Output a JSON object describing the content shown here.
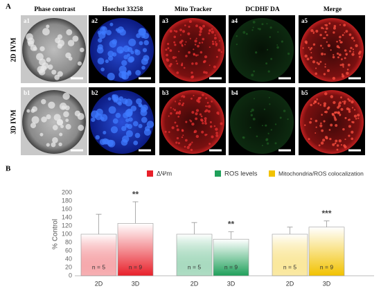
{
  "panel_a": {
    "label": "A",
    "columns": [
      "Phase contrast",
      "Hoechst 33258",
      "Mito Tracker",
      "DCDHF DA",
      "Merge"
    ],
    "rows": [
      {
        "label": "2D IVM",
        "images": [
          "a1",
          "a2",
          "a3",
          "a4",
          "a5"
        ]
      },
      {
        "label": "3D IVM",
        "images": [
          "b1",
          "b2",
          "b3",
          "b4",
          "b5"
        ]
      }
    ]
  },
  "chart_data": {
    "type": "bar",
    "panel_label": "B",
    "ylabel": "% Control",
    "categories": [
      "2D",
      "3D"
    ],
    "n_labels": [
      "n = 5",
      "n = 9"
    ],
    "ylim": [
      0,
      200
    ],
    "yticks": [
      0,
      20,
      40,
      60,
      80,
      100,
      120,
      140,
      160,
      180,
      200
    ],
    "grid": false,
    "series": [
      {
        "name": "ΔΨm",
        "color": "#e8202a",
        "values": [
          100,
          126
        ],
        "errors": [
          48,
          52
        ],
        "significance": "**"
      },
      {
        "name": "ROS levels",
        "color": "#1fa05a",
        "values": [
          100,
          88
        ],
        "errors": [
          28,
          18
        ],
        "significance": "**"
      },
      {
        "name": "Mitochondria/ROS colocalization",
        "color": "#f2c200",
        "values": [
          100,
          117
        ],
        "errors": [
          17,
          15
        ],
        "significance": "***"
      }
    ]
  }
}
